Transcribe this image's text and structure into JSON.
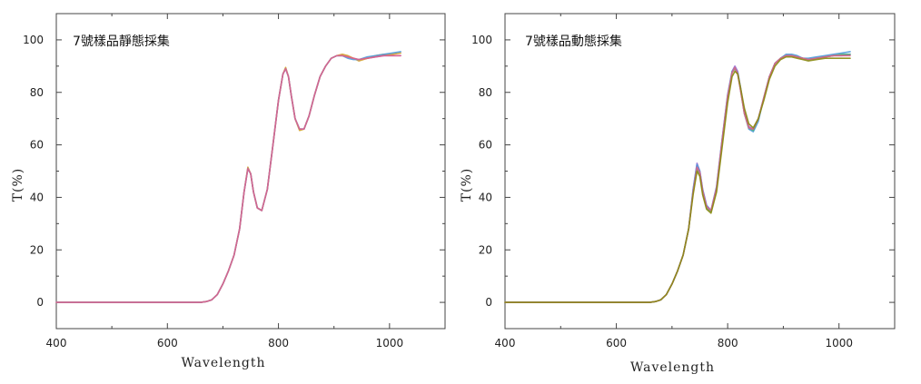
{
  "chart_data": [
    {
      "type": "line",
      "title": "7號樣品靜態採集",
      "xlabel": "Wavelength",
      "ylabel": "T(%)",
      "xlim": [
        400,
        1100
      ],
      "ylim": [
        -10,
        110
      ],
      "xticks": [
        400,
        600,
        800,
        1000
      ],
      "yticks": [
        0,
        20,
        40,
        60,
        80,
        100
      ],
      "grid": false,
      "x": [
        400,
        450,
        500,
        550,
        600,
        640,
        660,
        670,
        680,
        690,
        700,
        710,
        720,
        730,
        738,
        745,
        750,
        755,
        762,
        770,
        780,
        790,
        800,
        808,
        813,
        818,
        823,
        830,
        838,
        846,
        855,
        865,
        875,
        885,
        895,
        905,
        915,
        925,
        935,
        945,
        960,
        975,
        990,
        1005,
        1020
      ],
      "series": [
        {
          "color": "#9b6fd6",
          "values": [
            0,
            0,
            0,
            0,
            0,
            0,
            0,
            0.3,
            1,
            3,
            7,
            12,
            18,
            28,
            42,
            51,
            49,
            42,
            36,
            35,
            43,
            60,
            77,
            87,
            89,
            86,
            79,
            70,
            66,
            66,
            71,
            79,
            86,
            90,
            93,
            94,
            94,
            93.5,
            93,
            92.5,
            93,
            93.5,
            94,
            94,
            94
          ]
        },
        {
          "color": "#d4a02a",
          "values": [
            0,
            0,
            0,
            0,
            0,
            0,
            0,
            0.3,
            1,
            3,
            7,
            12,
            18,
            28,
            42,
            51.5,
            49,
            42,
            36,
            35,
            43,
            60,
            77,
            87,
            89.5,
            86,
            79,
            70,
            65.5,
            66,
            71,
            79,
            86,
            90,
            93,
            94,
            94.5,
            94,
            93,
            92,
            93,
            94,
            94.5,
            94.5,
            95
          ]
        },
        {
          "color": "#4f9bd9",
          "values": [
            0,
            0,
            0,
            0,
            0,
            0,
            0,
            0.3,
            1,
            3,
            7,
            12,
            18,
            28,
            42,
            51,
            49,
            42,
            36,
            35,
            43,
            60,
            77,
            87,
            89,
            86,
            79,
            70,
            66,
            66,
            71,
            79,
            86,
            90,
            93,
            94,
            94,
            93,
            92.5,
            92.5,
            93.5,
            94,
            94.5,
            95,
            95.5
          ]
        },
        {
          "color": "#e0608a",
          "values": [
            0,
            0,
            0,
            0,
            0,
            0,
            0,
            0.3,
            1,
            3,
            7,
            12,
            18,
            28,
            42,
            51,
            49,
            42,
            36,
            35,
            43,
            60,
            77,
            87,
            89,
            86,
            79,
            70,
            66,
            66,
            71,
            79,
            86,
            90,
            93,
            94,
            94,
            93.5,
            93,
            92.5,
            93,
            93.5,
            94,
            94,
            94
          ]
        }
      ]
    },
    {
      "type": "line",
      "title": "7號樣品動態採集",
      "xlabel": "Wavelength",
      "ylabel": "T(%)",
      "xlim": [
        400,
        1100
      ],
      "ylim": [
        -10,
        110
      ],
      "xticks": [
        400,
        600,
        800,
        1000
      ],
      "yticks": [
        0,
        20,
        40,
        60,
        80,
        100
      ],
      "grid": false,
      "x": [
        400,
        450,
        500,
        550,
        600,
        640,
        660,
        670,
        680,
        690,
        700,
        710,
        720,
        730,
        738,
        745,
        750,
        755,
        762,
        770,
        780,
        790,
        800,
        808,
        813,
        818,
        823,
        830,
        838,
        846,
        855,
        865,
        875,
        885,
        895,
        905,
        915,
        925,
        935,
        945,
        960,
        975,
        990,
        1005,
        1020
      ],
      "series": [
        {
          "color": "#9b6fd6",
          "values": [
            0,
            0,
            0,
            0,
            0,
            0,
            0,
            0.3,
            1,
            3,
            7,
            12,
            18,
            28,
            43,
            53,
            50,
            43,
            37,
            35,
            44,
            62,
            79,
            88,
            90,
            88,
            82,
            73,
            67,
            66,
            70,
            78,
            86,
            91,
            93,
            94,
            94,
            93.5,
            93,
            92.5,
            93,
            93.5,
            94,
            94,
            94.5
          ]
        },
        {
          "color": "#4f9bd9",
          "values": [
            0,
            0,
            0,
            0,
            0,
            0,
            0,
            0.3,
            1,
            3,
            7,
            12,
            18,
            28,
            43,
            52.5,
            50,
            43,
            37,
            35,
            44,
            62,
            79,
            88,
            89.5,
            87.5,
            82,
            72,
            66,
            65,
            69,
            78,
            86,
            91,
            93,
            94.5,
            94.5,
            94,
            93,
            93,
            93.5,
            94,
            94.5,
            95,
            95.5
          ]
        },
        {
          "color": "#4caf7d",
          "values": [
            0,
            0,
            0,
            0,
            0,
            0,
            0,
            0.3,
            1,
            3,
            7,
            12,
            18,
            28,
            42,
            51,
            49,
            42,
            36,
            34.5,
            43,
            61,
            78,
            87.5,
            89,
            87,
            81,
            72,
            66.5,
            65.5,
            70,
            78,
            86,
            91,
            93,
            94,
            94,
            93.5,
            93,
            92.5,
            93,
            93.5,
            94,
            94.5,
            94.5
          ]
        },
        {
          "color": "#e0608a",
          "values": [
            0,
            0,
            0,
            0,
            0,
            0,
            0,
            0.3,
            1,
            3,
            7,
            12,
            18,
            28,
            42,
            51.5,
            49.5,
            42.5,
            36.5,
            35,
            43.5,
            61.5,
            78.5,
            87.5,
            89.5,
            87,
            81,
            72,
            66.5,
            66,
            70,
            78,
            86,
            91,
            93,
            94,
            94,
            93.5,
            93,
            92.5,
            93,
            93.5,
            94,
            94,
            94
          ]
        },
        {
          "color": "#8a8a10",
          "values": [
            0,
            0,
            0,
            0,
            0,
            0,
            0,
            0.3,
            1,
            3,
            7,
            12,
            18,
            28,
            41,
            50,
            48,
            41,
            35.5,
            34,
            42,
            59,
            76,
            86,
            88,
            87,
            82,
            74,
            68,
            66.5,
            70,
            77,
            85,
            90,
            92.5,
            93.5,
            93.5,
            93,
            92.5,
            92,
            92.5,
            93,
            93,
            93,
            93
          ]
        }
      ]
    }
  ]
}
